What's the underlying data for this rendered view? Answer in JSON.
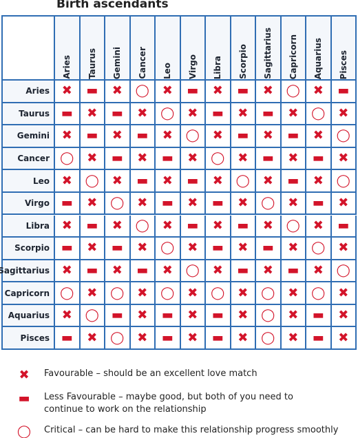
{
  "title": "Birth ascendants",
  "columns": [
    "Aries",
    "Taurus",
    "Gemini",
    "Cancer",
    "Leo",
    "Virgo",
    "Libra",
    "Scorpio",
    "Sagittarius",
    "Capricorn",
    "Aquarius",
    "Pisces"
  ],
  "rows": [
    {
      "label": "Aries",
      "cells": [
        "✖",
        "▬",
        "✖",
        "◯",
        "✖",
        "▬",
        "✖",
        "▬",
        "✖",
        "◯",
        "✖",
        "▬"
      ]
    },
    {
      "label": "Taurus",
      "cells": [
        "▬",
        "✖",
        "▬",
        "✖",
        "◯",
        "✖",
        "▬",
        "✖",
        "▬",
        "✖",
        "◯",
        "✖"
      ]
    },
    {
      "label": "Gemini",
      "cells": [
        "✖",
        "▬",
        "✖",
        "▬",
        "✖",
        "◯",
        "✖",
        "▬",
        "✖",
        "▬",
        "✖",
        "◯"
      ]
    },
    {
      "label": "Cancer",
      "cells": [
        "◯",
        "✖",
        "▬",
        "✖",
        "▬",
        "✖",
        "◯",
        "✖",
        "▬",
        "✖",
        "▬",
        "✖"
      ]
    },
    {
      "label": "Leo",
      "cells": [
        "✖",
        "◯",
        "✖",
        "▬",
        "✖",
        "▬",
        "✖",
        "◯",
        "✖",
        "▬",
        "✖",
        "◯"
      ]
    },
    {
      "label": "Virgo",
      "cells": [
        "▬",
        "✖",
        "◯",
        "✖",
        "▬",
        "✖",
        "▬",
        "✖",
        "◯",
        "✖",
        "▬",
        "✖"
      ]
    },
    {
      "label": "Libra",
      "cells": [
        "✖",
        "▬",
        "✖",
        "◯",
        "✖",
        "▬",
        "✖",
        "▬",
        "✖",
        "◯",
        "✖",
        "▬"
      ]
    },
    {
      "label": "Scorpio",
      "cells": [
        "▬",
        "✖",
        "▬",
        "✖",
        "◯",
        "✖",
        "▬",
        "✖",
        "▬",
        "✖",
        "◯",
        "✖"
      ]
    },
    {
      "label": "Sagittarius",
      "cells": [
        "✖",
        "▬",
        "✖",
        "▬",
        "✖",
        "◯",
        "✖",
        "▬",
        "✖",
        "▬",
        "✖",
        "◯"
      ]
    },
    {
      "label": "Capricorn",
      "cells": [
        "◯",
        "✖",
        "◯",
        "✖",
        "◯",
        "✖",
        "◯",
        "✖",
        "◯",
        "✖",
        "◯",
        "✖"
      ]
    },
    {
      "label": "Aquarius",
      "cells": [
        "✖",
        "◯",
        "▬",
        "✖",
        "▬",
        "✖",
        "▬",
        "✖",
        "◯",
        "✖",
        "▬",
        "✖"
      ]
    },
    {
      "label": "Pisces",
      "cells": [
        "▬",
        "✖",
        "◯",
        "✖",
        "▬",
        "✖",
        "▬",
        "✖",
        "◯",
        "✖",
        "▬",
        "✖"
      ]
    }
  ],
  "legend": [
    {
      "symbol": "✖",
      "lines": [
        "Favourable – should be an excellent love match"
      ]
    },
    {
      "symbol": "▬",
      "lines": [
        "Less Favourable – maybe good, but both of you need to",
        "continue to work on the relationship"
      ]
    },
    {
      "symbol": "◯",
      "lines": [
        "Critical – can be hard to make this relationship progress smoothly"
      ]
    }
  ]
}
